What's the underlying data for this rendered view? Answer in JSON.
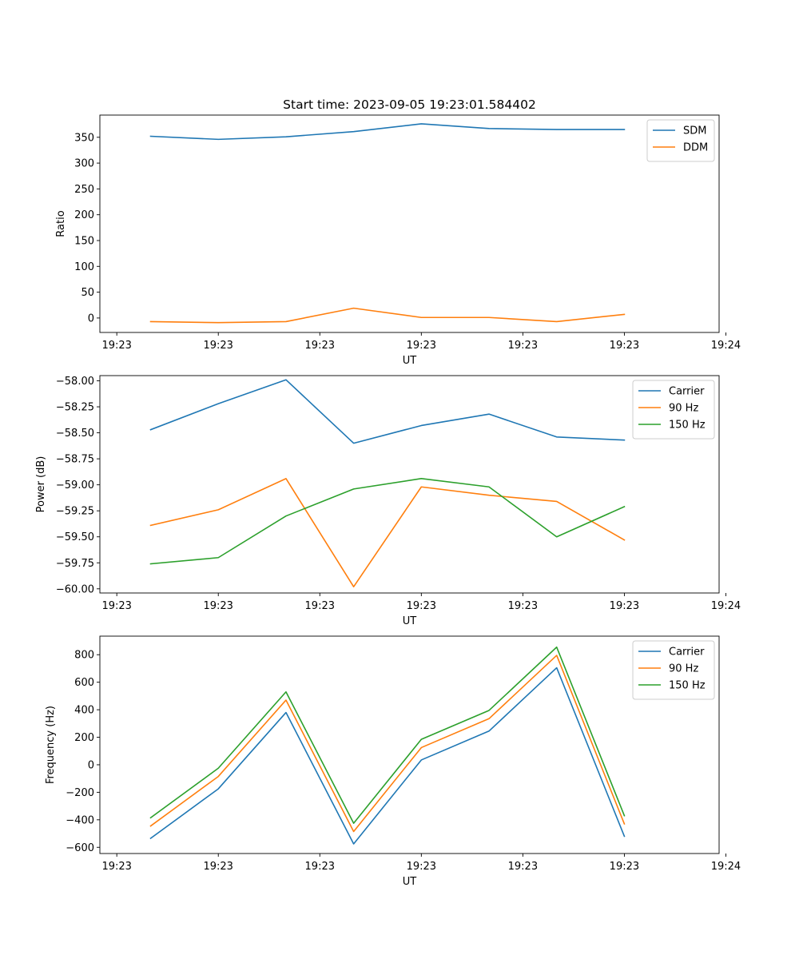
{
  "figure": {
    "title": "Start time: 2023-09-05 19:23:01.584402"
  },
  "colors": {
    "blue": "#1f77b4",
    "orange": "#ff7f0e",
    "green": "#2ca02c"
  },
  "chart_data": [
    {
      "type": "line",
      "title": "Start time: 2023-09-05 19:23:01.584402",
      "xlabel": "UT",
      "ylabel": "Ratio",
      "x": [
        0,
        1,
        2,
        3,
        4,
        5,
        6,
        7
      ],
      "xlim": [
        -0.75,
        8.4
      ],
      "xticks": [
        {
          "pos": -0.5,
          "label": "19:23"
        },
        {
          "pos": 1.0,
          "label": "19:23"
        },
        {
          "pos": 2.5,
          "label": "19:23"
        },
        {
          "pos": 4.0,
          "label": "19:23"
        },
        {
          "pos": 5.5,
          "label": "19:23"
        },
        {
          "pos": 7.0,
          "label": "19:23"
        },
        {
          "pos": 8.5,
          "label": "19:24"
        }
      ],
      "ylim": [
        -28,
        393
      ],
      "yticks": [
        0,
        50,
        100,
        150,
        200,
        250,
        300,
        350
      ],
      "ytick_labels": [
        "0",
        "50",
        "100",
        "150",
        "200",
        "250",
        "300",
        "350"
      ],
      "legend": "top-right",
      "series": [
        {
          "name": "SDM",
          "color": "#1f77b4",
          "values": [
            352,
            346,
            351,
            361,
            376,
            367,
            365,
            365
          ]
        },
        {
          "name": "DDM",
          "color": "#ff7f0e",
          "values": [
            -7,
            -9,
            -7,
            19,
            1,
            1,
            -7,
            7
          ]
        }
      ]
    },
    {
      "type": "line",
      "title": "",
      "xlabel": "UT",
      "ylabel": "Power (dB)",
      "x": [
        0,
        1,
        2,
        3,
        4,
        5,
        6,
        7
      ],
      "xlim": [
        -0.75,
        8.4
      ],
      "xticks": [
        {
          "pos": -0.5,
          "label": "19:23"
        },
        {
          "pos": 1.0,
          "label": "19:23"
        },
        {
          "pos": 2.5,
          "label": "19:23"
        },
        {
          "pos": 4.0,
          "label": "19:23"
        },
        {
          "pos": 5.5,
          "label": "19:23"
        },
        {
          "pos": 7.0,
          "label": "19:23"
        },
        {
          "pos": 8.5,
          "label": "19:24"
        }
      ],
      "ylim": [
        -60.04,
        -57.95
      ],
      "yticks": [
        -60.0,
        -59.75,
        -59.5,
        -59.25,
        -59.0,
        -58.75,
        -58.5,
        -58.25,
        -58.0
      ],
      "ytick_labels": [
        "−60.00",
        "−59.75",
        "−59.50",
        "−59.25",
        "−59.00",
        "−58.75",
        "−58.50",
        "−58.25",
        "−58.00"
      ],
      "legend": "top-right",
      "series": [
        {
          "name": "Carrier",
          "color": "#1f77b4",
          "values": [
            -58.47,
            -58.22,
            -57.99,
            -58.6,
            -58.43,
            -58.32,
            -58.54,
            -58.57
          ]
        },
        {
          "name": "90 Hz",
          "color": "#ff7f0e",
          "values": [
            -59.39,
            -59.24,
            -58.94,
            -59.98,
            -59.02,
            -59.1,
            -59.16,
            -59.53
          ]
        },
        {
          "name": "150 Hz",
          "color": "#2ca02c",
          "values": [
            -59.76,
            -59.7,
            -59.3,
            -59.04,
            -58.94,
            -59.02,
            -59.5,
            -59.21
          ]
        }
      ]
    },
    {
      "type": "line",
      "title": "",
      "xlabel": "UT",
      "ylabel": "Frequency (Hz)",
      "x": [
        0,
        1,
        2,
        3,
        4,
        5,
        6,
        7
      ],
      "xlim": [
        -0.75,
        8.4
      ],
      "xticks": [
        {
          "pos": -0.5,
          "label": "19:23"
        },
        {
          "pos": 1.0,
          "label": "19:23"
        },
        {
          "pos": 2.5,
          "label": "19:23"
        },
        {
          "pos": 4.0,
          "label": "19:23"
        },
        {
          "pos": 5.5,
          "label": "19:23"
        },
        {
          "pos": 7.0,
          "label": "19:23"
        },
        {
          "pos": 8.5,
          "label": "19:24"
        }
      ],
      "ylim": [
        -645,
        935
      ],
      "yticks": [
        -600,
        -400,
        -200,
        0,
        200,
        400,
        600,
        800
      ],
      "ytick_labels": [
        "−600",
        "−400",
        "−200",
        "0",
        "200",
        "400",
        "600",
        "800"
      ],
      "legend": "top-right",
      "series": [
        {
          "name": "Carrier",
          "color": "#1f77b4",
          "values": [
            -535,
            -175,
            380,
            -575,
            35,
            245,
            705,
            -520
          ]
        },
        {
          "name": "90 Hz",
          "color": "#ff7f0e",
          "values": [
            -445,
            -85,
            470,
            -485,
            125,
            335,
            795,
            -430
          ]
        },
        {
          "name": "150 Hz",
          "color": "#2ca02c",
          "values": [
            -385,
            -25,
            530,
            -425,
            185,
            395,
            855,
            -370
          ]
        }
      ]
    }
  ]
}
